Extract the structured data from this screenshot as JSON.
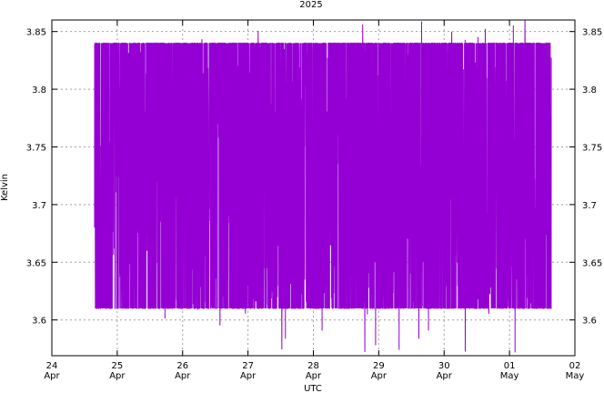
{
  "chart_data": {
    "type": "line",
    "title": "2025",
    "xlabel": "UTC",
    "ylabel": "Kelvin",
    "ylim": [
      3.569,
      3.86
    ],
    "xlim": [
      "2025-04-24",
      "2025-05-02"
    ],
    "grid": true,
    "y_ticks": [
      "3.6",
      "3.65",
      "3.7",
      "3.75",
      "3.8",
      "3.85"
    ],
    "x_ticks": [
      {
        "day": "24",
        "month": "Apr"
      },
      {
        "day": "25",
        "month": "Apr"
      },
      {
        "day": "26",
        "month": "Apr"
      },
      {
        "day": "27",
        "month": "Apr"
      },
      {
        "day": "28",
        "month": "Apr"
      },
      {
        "day": "29",
        "month": "Apr"
      },
      {
        "day": "30",
        "month": "Apr"
      },
      {
        "day": "01",
        "month": "May"
      },
      {
        "day": "02",
        "month": "May"
      }
    ],
    "series": [
      {
        "color": "#9400d3",
        "time_range": [
          "2025-04-24T15:40",
          "2025-05-01T15:20"
        ],
        "typical_band": [
          3.61,
          3.84
        ],
        "max": 3.86,
        "min": 3.57
      }
    ]
  }
}
